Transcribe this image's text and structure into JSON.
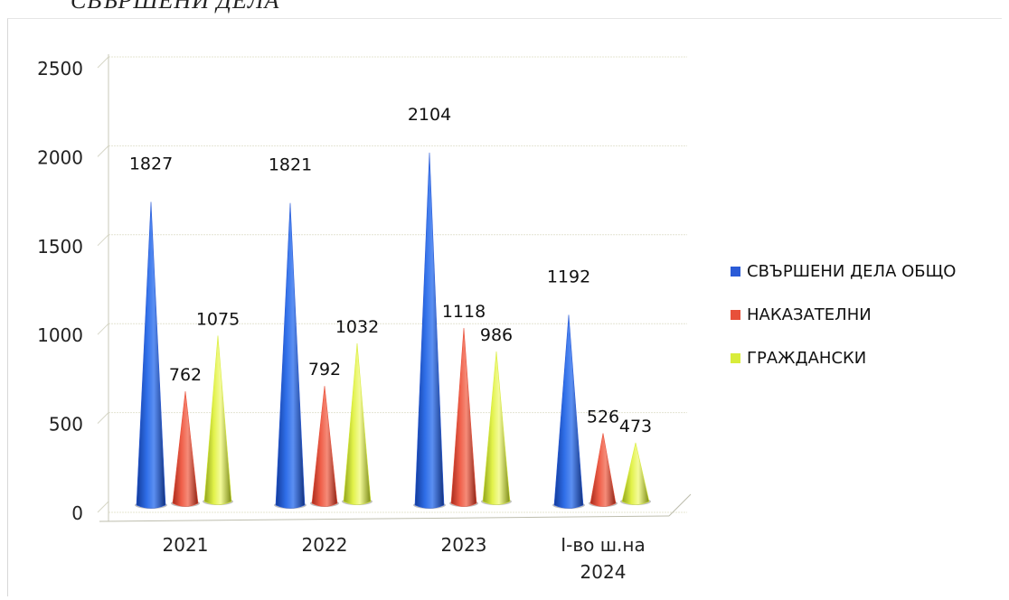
{
  "caption": "СВЪРШЕНИ ДЕЛА",
  "chart_data": {
    "type": "bar",
    "style": "3d-cone",
    "title": "",
    "xlabel": "",
    "ylabel": "",
    "ylim": [
      0,
      2500
    ],
    "yticks": [
      "0",
      "500",
      "1000",
      "1500",
      "2000",
      "2500"
    ],
    "categories": [
      "2021",
      "2022",
      "2023",
      "I-во ш.на 2024"
    ],
    "series": [
      {
        "name": "СВЪРШЕНИ ДЕЛА ОБЩО",
        "color": "#2a5bd7",
        "values": [
          1827,
          1821,
          2104,
          1192
        ]
      },
      {
        "name": "НАКАЗАТЕЛНИ",
        "color": "#e8503a",
        "values": [
          762,
          792,
          1118,
          526
        ]
      },
      {
        "name": "ГРАЖДАНСКИ",
        "color": "#d8ec3a",
        "values": [
          1075,
          1032,
          986,
          473
        ]
      }
    ],
    "grid": true,
    "legend": "right"
  }
}
